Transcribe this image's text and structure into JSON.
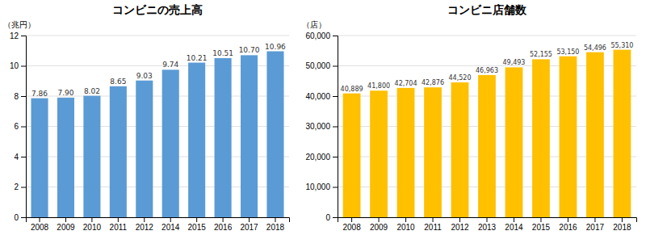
{
  "chart_data": [
    {
      "type": "bar",
      "title": "コンビニの売上高",
      "ylabel": "（兆円）",
      "categories": [
        "2008",
        "2009",
        "2010",
        "2011",
        "2012",
        "2014",
        "2015",
        "2016",
        "2017",
        "2018"
      ],
      "values": [
        7.86,
        7.9,
        8.02,
        8.65,
        9.03,
        9.74,
        10.21,
        10.51,
        10.7,
        10.96
      ],
      "value_labels": [
        "7.86",
        "7.90",
        "8.02",
        "8.65",
        "9.03",
        "9.74",
        "10.21",
        "10.51",
        "10.70",
        "10.96"
      ],
      "color": "#5B9BD5",
      "ylim": [
        0,
        12
      ],
      "yticks": [
        0,
        2,
        4,
        6,
        8,
        10,
        12
      ],
      "grid": true,
      "data_labels": true
    },
    {
      "type": "bar",
      "title": "コンビニ店舗数",
      "ylabel": "（店）",
      "categories": [
        "2008",
        "2009",
        "2010",
        "2011",
        "2012",
        "2013",
        "2014",
        "2015",
        "2016",
        "2017",
        "2018"
      ],
      "values": [
        40889,
        41800,
        42704,
        42876,
        44520,
        46963,
        49493,
        52155,
        53150,
        54496,
        55310
      ],
      "value_labels": [
        "40,889",
        "41,800",
        "42,704",
        "42,876",
        "44,520",
        "46,963",
        "49,493",
        "52,155",
        "53,150",
        "54,496",
        "55,310"
      ],
      "color": "#FFC000",
      "ylim": [
        0,
        60000
      ],
      "yticks": [
        0,
        {
          "value": 10000,
          "label": "10,000"
        },
        {
          "value": 20000,
          "label": "20,000"
        },
        {
          "value": 30000,
          "label": "30,000"
        },
        {
          "value": 40000,
          "label": "40,000"
        },
        {
          "value": 50000,
          "label": "50,000"
        },
        {
          "value": 60000,
          "label": "60,000"
        }
      ],
      "grid": true,
      "data_labels": true
    }
  ]
}
